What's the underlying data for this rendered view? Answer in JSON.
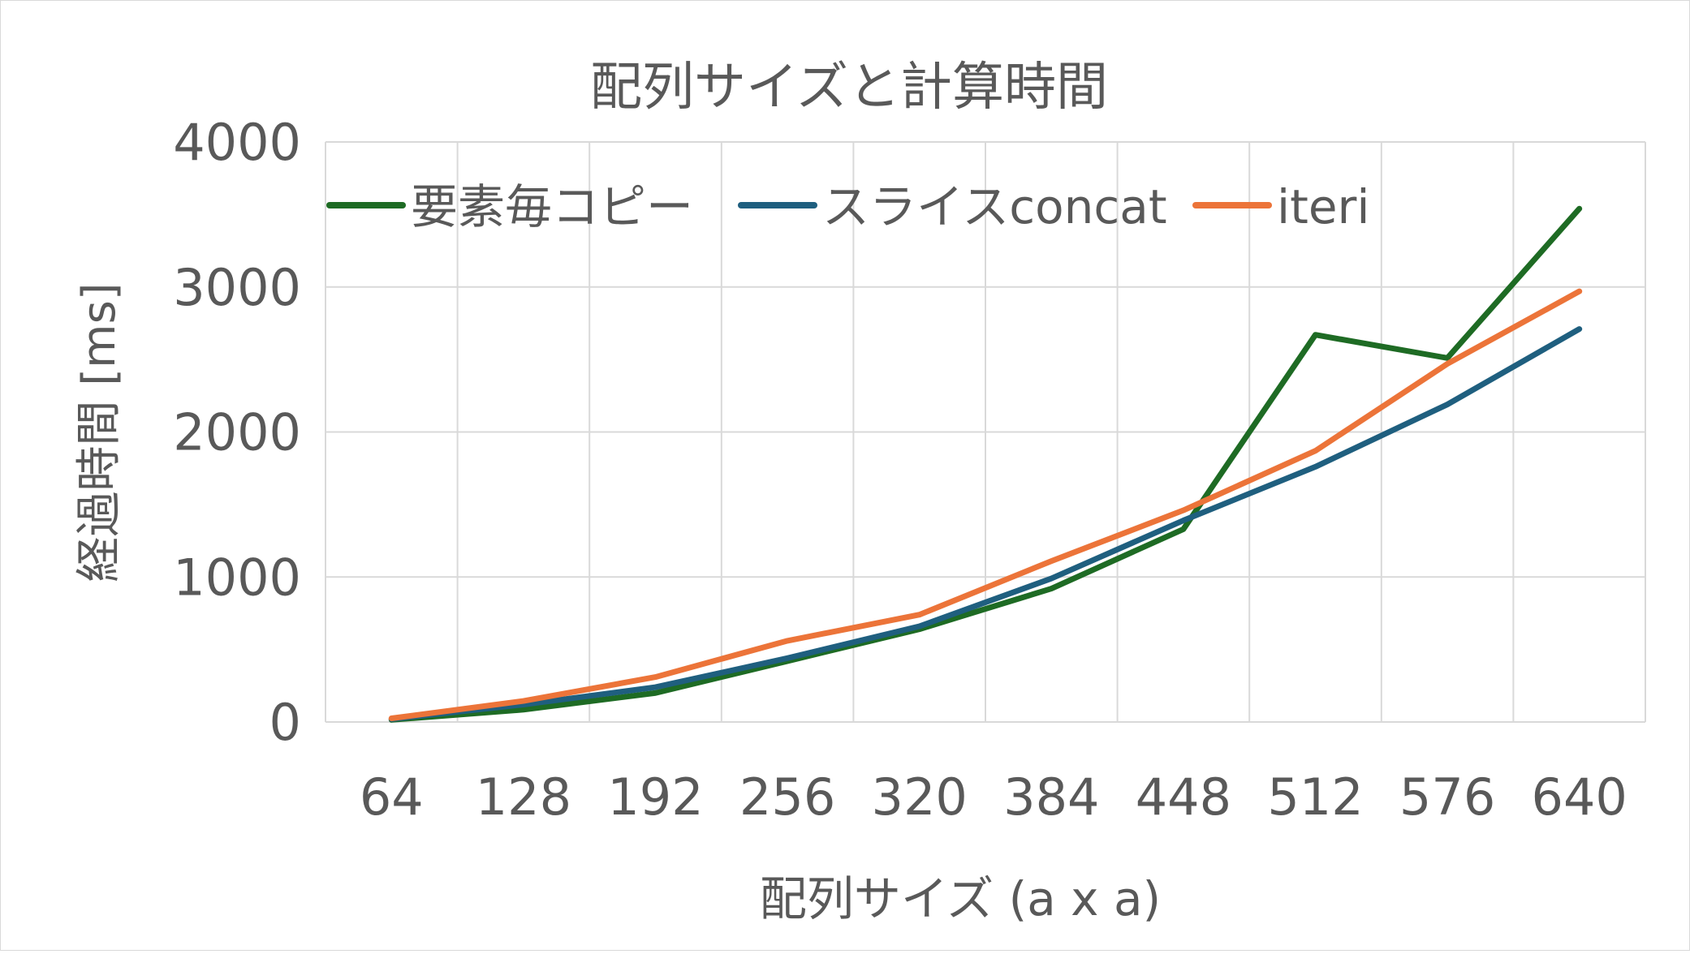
{
  "chart_data": {
    "type": "line",
    "title": "配列サイズと計算時間",
    "xlabel": "配列サイズ (a x a)",
    "ylabel": "経過時間 [ms]",
    "categories": [
      "64",
      "128",
      "192",
      "256",
      "320",
      "384",
      "448",
      "512",
      "576",
      "640"
    ],
    "ylim": [
      0,
      4000
    ],
    "yticks": [
      "0",
      "1000",
      "2000",
      "3000",
      "4000"
    ],
    "grid": true,
    "legend_position": "top",
    "series": [
      {
        "name": "要素毎コピー",
        "color": "#1e6b24",
        "values": [
          15,
          85,
          200,
          420,
          640,
          920,
          1330,
          2670,
          2510,
          3540
        ]
      },
      {
        "name": "スライスconcat",
        "color": "#1f5f7f",
        "values": [
          20,
          120,
          240,
          440,
          660,
          990,
          1390,
          1760,
          2190,
          2710
        ]
      },
      {
        "name": "iteri",
        "color": "#ec7439",
        "values": [
          25,
          145,
          310,
          560,
          740,
          1110,
          1460,
          1870,
          2470,
          2970
        ]
      }
    ]
  }
}
